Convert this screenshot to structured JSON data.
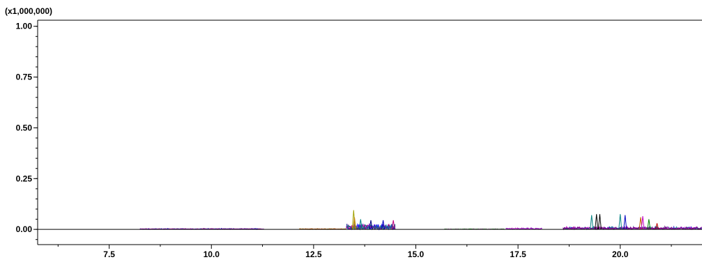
{
  "chart_data": {
    "type": "line",
    "title": "",
    "xlabel": "",
    "ylabel": "",
    "y_multiplier_label": "(x1,000,000)",
    "xlim": [
      5.75,
      22.0
    ],
    "ylim": [
      -0.075,
      1.03
    ],
    "grid": false,
    "legend": "none",
    "x_ticks": [
      {
        "value": 7.5,
        "label": "7.5"
      },
      {
        "value": 10.0,
        "label": "10.0"
      },
      {
        "value": 12.5,
        "label": "12.5"
      },
      {
        "value": 15.0,
        "label": "15.0"
      },
      {
        "value": 17.5,
        "label": "17.5"
      },
      {
        "value": 20.0,
        "label": "20.0"
      }
    ],
    "y_ticks": [
      {
        "value": 0.0,
        "label": "0.00"
      },
      {
        "value": 0.25,
        "label": "0.25"
      },
      {
        "value": 0.5,
        "label": "0.50"
      },
      {
        "value": 0.75,
        "label": "0.75"
      },
      {
        "value": 1.0,
        "label": "1.00"
      }
    ],
    "baseline_color": "#000000",
    "segments": [
      {
        "x_start": 8.25,
        "x_end": 11.3,
        "noise": 0.005,
        "colors": [
          "#c000c0",
          "#0000c0",
          "#800080"
        ]
      },
      {
        "x_start": 12.15,
        "x_end": 13.3,
        "noise": 0.004,
        "colors": [
          "#c08000",
          "#808000",
          "#c04000"
        ]
      },
      {
        "x_start": 13.3,
        "x_end": 14.5,
        "noise": 0.03,
        "colors": [
          "#000080",
          "#8000c0",
          "#0000ff",
          "#c00080",
          "#008080"
        ]
      },
      {
        "x_start": 15.7,
        "x_end": 17.2,
        "noise": 0.003,
        "colors": [
          "#c000c0",
          "#008000"
        ]
      },
      {
        "x_start": 17.2,
        "x_end": 18.1,
        "noise": 0.008,
        "colors": [
          "#c000c0",
          "#8000c0"
        ]
      },
      {
        "x_start": 18.6,
        "x_end": 22.0,
        "noise": 0.015,
        "colors": [
          "#0000c0",
          "#008080",
          "#c000c0",
          "#800080"
        ]
      }
    ],
    "peaks": [
      {
        "x": 13.48,
        "y": 0.095,
        "color": "#a0a000"
      },
      {
        "x": 13.5,
        "y": 0.06,
        "color": "#c08000"
      },
      {
        "x": 13.65,
        "y": 0.05,
        "color": "#008080"
      },
      {
        "x": 13.9,
        "y": 0.045,
        "color": "#000080"
      },
      {
        "x": 14.2,
        "y": 0.045,
        "color": "#0000c0"
      },
      {
        "x": 14.45,
        "y": 0.045,
        "color": "#c00080"
      },
      {
        "x": 19.3,
        "y": 0.07,
        "color": "#008080"
      },
      {
        "x": 19.42,
        "y": 0.075,
        "color": "#000000"
      },
      {
        "x": 19.5,
        "y": 0.075,
        "color": "#000000"
      },
      {
        "x": 20.0,
        "y": 0.075,
        "color": "#008080"
      },
      {
        "x": 20.12,
        "y": 0.07,
        "color": "#0000c0"
      },
      {
        "x": 20.5,
        "y": 0.06,
        "color": "#c06000"
      },
      {
        "x": 20.55,
        "y": 0.065,
        "color": "#c000c0"
      },
      {
        "x": 20.7,
        "y": 0.05,
        "color": "#008000"
      },
      {
        "x": 20.9,
        "y": 0.03,
        "color": "#c00000"
      }
    ]
  }
}
